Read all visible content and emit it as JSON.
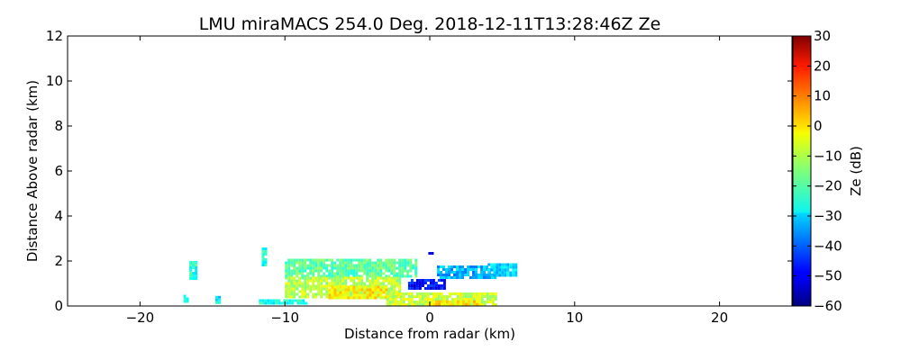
{
  "chart_data": {
    "type": "heatmap",
    "title": "LMU miraMACS 254.0 Deg. 2018-12-11T13:28:46Z  Ze",
    "xlabel": "Distance from radar (km)",
    "ylabel": "Distance Above radar  (km)",
    "xlim": [
      -25,
      25
    ],
    "ylim": [
      0,
      12
    ],
    "x_ticks": [
      -20,
      -10,
      0,
      10,
      20
    ],
    "y_ticks": [
      0,
      2,
      4,
      6,
      8,
      10,
      12
    ],
    "colorbar": {
      "label": "Ze (dB)",
      "range": [
        -60,
        30
      ],
      "ticks": [
        -60,
        -50,
        -40,
        -30,
        -20,
        -10,
        0,
        10,
        20,
        30
      ],
      "colormap": "jet"
    },
    "tick_labels": {
      "x": [
        "−20",
        "−10",
        "0",
        "10",
        "20"
      ],
      "y": [
        "0",
        "2",
        "4",
        "6",
        "8",
        "10",
        "12"
      ],
      "cb": [
        "−60",
        "−50",
        "−40",
        "−30",
        "−20",
        "−10",
        "0",
        "10",
        "20",
        "30"
      ]
    },
    "echo_regions": [
      {
        "x": [
          -11.6,
          -11.3
        ],
        "y": [
          1.8,
          2.6
        ],
        "ze": -25
      },
      {
        "x": [
          -16.6,
          -16.2
        ],
        "y": [
          1.2,
          2.0
        ],
        "ze": -23
      },
      {
        "x": [
          -17.0,
          -16.8
        ],
        "y": [
          0.25,
          0.5
        ],
        "ze": -26
      },
      {
        "x": [
          -14.8,
          -14.6
        ],
        "y": [
          0.2,
          0.45
        ],
        "ze": -27
      },
      {
        "x": [
          -11.8,
          -8.5
        ],
        "y": [
          0.1,
          0.3
        ],
        "ze": -24
      },
      {
        "x": [
          -10.0,
          -1.0
        ],
        "y": [
          1.3,
          2.1
        ],
        "ze": -18
      },
      {
        "x": [
          -10.0,
          -2.0
        ],
        "y": [
          0.4,
          1.3
        ],
        "ze": -10
      },
      {
        "x": [
          -7.0,
          -3.0
        ],
        "y": [
          0.3,
          0.9
        ],
        "ze": -3
      },
      {
        "x": [
          -3.0,
          4.6
        ],
        "y": [
          0.0,
          0.6
        ],
        "ze": -8
      },
      {
        "x": [
          0.0,
          3.5
        ],
        "y": [
          0.0,
          0.25
        ],
        "ze": -2
      },
      {
        "x": [
          0.5,
          4.5
        ],
        "y": [
          1.3,
          1.8
        ],
        "ze": -33
      },
      {
        "x": [
          4.0,
          6.0
        ],
        "y": [
          1.4,
          1.9
        ],
        "ze": -30
      },
      {
        "x": [
          -1.5,
          1.0
        ],
        "y": [
          0.8,
          1.2
        ],
        "ze": -48
      },
      {
        "x": [
          -0.1,
          0.1
        ],
        "y": [
          2.3,
          2.4
        ],
        "ze": -55
      }
    ]
  }
}
